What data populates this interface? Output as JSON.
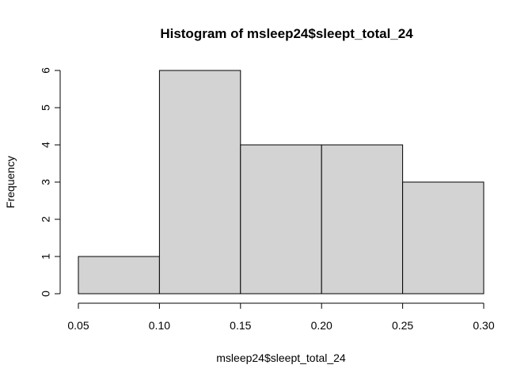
{
  "chart_data": {
    "type": "bar",
    "subtype": "histogram",
    "title": "Histogram of msleep24$sleept_total_24",
    "xlabel": "msleep24$sleept_total_24",
    "ylabel": "Frequency",
    "bins": [
      {
        "start": 0.05,
        "end": 0.1,
        "count": 1
      },
      {
        "start": 0.1,
        "end": 0.15,
        "count": 6
      },
      {
        "start": 0.15,
        "end": 0.2,
        "count": 4
      },
      {
        "start": 0.2,
        "end": 0.25,
        "count": 4
      },
      {
        "start": 0.25,
        "end": 0.3,
        "count": 3
      }
    ],
    "x_ticks": [
      "0.05",
      "0.10",
      "0.15",
      "0.20",
      "0.25",
      "0.30"
    ],
    "x_tick_values": [
      0.05,
      0.1,
      0.15,
      0.2,
      0.25,
      0.3
    ],
    "y_ticks": [
      "0",
      "1",
      "2",
      "3",
      "4",
      "5",
      "6"
    ],
    "y_tick_values": [
      0,
      1,
      2,
      3,
      4,
      5,
      6
    ],
    "xlim": [
      0.05,
      0.3
    ],
    "ylim": [
      0,
      6
    ],
    "grid": false,
    "bar_fill": "#d3d3d3",
    "bar_stroke": "#000000"
  }
}
